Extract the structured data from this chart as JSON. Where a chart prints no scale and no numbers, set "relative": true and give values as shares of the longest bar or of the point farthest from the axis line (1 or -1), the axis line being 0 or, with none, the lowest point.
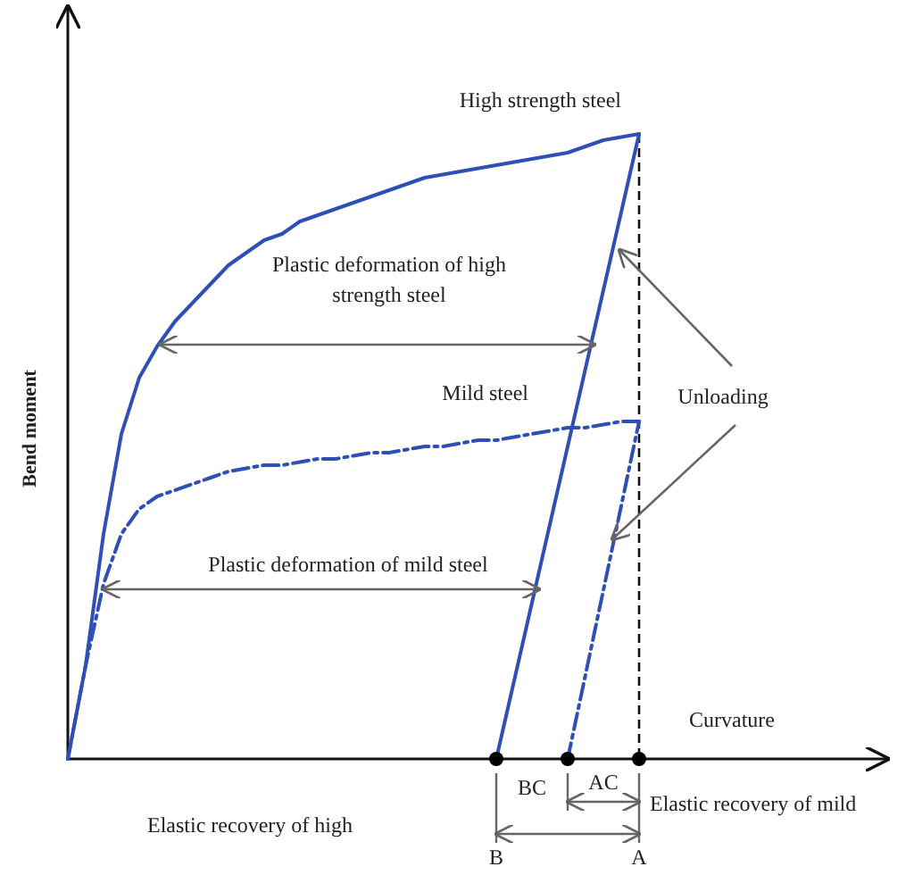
{
  "chart_data": {
    "type": "line",
    "relative": true,
    "xlabel": "Curvature",
    "ylabel": "Bend moment",
    "categories": [
      null,
      null,
      null,
      null,
      null,
      null,
      null,
      null,
      null,
      null,
      null,
      null,
      null,
      null,
      null,
      null,
      null,
      null,
      null,
      null,
      null,
      null,
      null,
      null,
      null,
      null,
      null,
      null,
      null,
      null,
      null,
      null,
      null,
      null,
      null,
      null,
      null,
      null,
      null,
      null,
      null,
      null,
      null,
      null,
      null,
      null
    ],
    "series": [
      {
        "name": "High strength steel",
        "color": "#2e4fb5",
        "line_style": "solid",
        "values": [
          0,
          0.15,
          0.36,
          0.52,
          0.61,
          0.66,
          0.7,
          0.73,
          0.76,
          0.79,
          0.81,
          0.83,
          0.84,
          0.86,
          0.87,
          0.88,
          0.89,
          0.9,
          0.91,
          0.92,
          0.93,
          0.935,
          0.94,
          0.945,
          0.95,
          0.955,
          0.96,
          0.965,
          0.97,
          0.98,
          0.99,
          0.995,
          1,
          null,
          null,
          null,
          null,
          null,
          null,
          null,
          null,
          null,
          null,
          null,
          null,
          null
        ]
      },
      {
        "name": "Mild steel",
        "color": "#2e4fb5",
        "line_style": "dashed",
        "values": [
          0,
          0.15,
          0.28,
          0.36,
          0.4,
          0.42,
          0.43,
          0.44,
          0.45,
          0.46,
          0.465,
          0.47,
          0.47,
          0.475,
          0.48,
          0.48,
          0.485,
          0.49,
          0.49,
          0.495,
          0.5,
          0.5,
          0.505,
          0.51,
          0.51,
          0.515,
          0.52,
          0.525,
          0.53,
          0.53,
          0.535,
          0.54,
          0.54,
          null,
          null,
          null,
          null,
          null,
          null,
          null,
          null,
          null,
          null,
          null,
          null,
          null
        ]
      },
      {
        "color": "#2e4fb5",
        "line_style": "solid",
        "values": [
          null,
          null,
          null,
          null,
          null,
          null,
          null,
          null,
          null,
          null,
          null,
          null,
          null,
          null,
          null,
          null,
          null,
          null,
          null,
          null,
          null,
          null,
          null,
          null,
          0,
          0.125,
          0.25,
          0.375,
          0.5,
          0.625,
          0.75,
          0.875,
          1,
          null,
          null,
          null,
          null,
          null,
          null,
          null,
          null,
          null,
          null,
          null,
          null,
          null
        ]
      },
      {
        "color": "#2e4fb5",
        "line_style": "dashed",
        "values": [
          null,
          null,
          null,
          null,
          null,
          null,
          null,
          null,
          null,
          null,
          null,
          null,
          null,
          null,
          null,
          null,
          null,
          null,
          null,
          null,
          null,
          null,
          null,
          null,
          null,
          null,
          null,
          null,
          0,
          0.135,
          0.27,
          0.405,
          0.54,
          null,
          null,
          null,
          null,
          null,
          null,
          null,
          null,
          null,
          null,
          null,
          null,
          null
        ]
      }
    ],
    "annotations": [
      "Plastic deformation of high strength steel",
      "Plastic deformation of mild steel",
      "Unloading",
      "BC",
      "AC",
      "Elastic recovery of mild",
      "Elastic recovery of high",
      {
        "text": "B",
        "y": 0
      },
      {
        "text": "A",
        "y": 0
      }
    ]
  }
}
